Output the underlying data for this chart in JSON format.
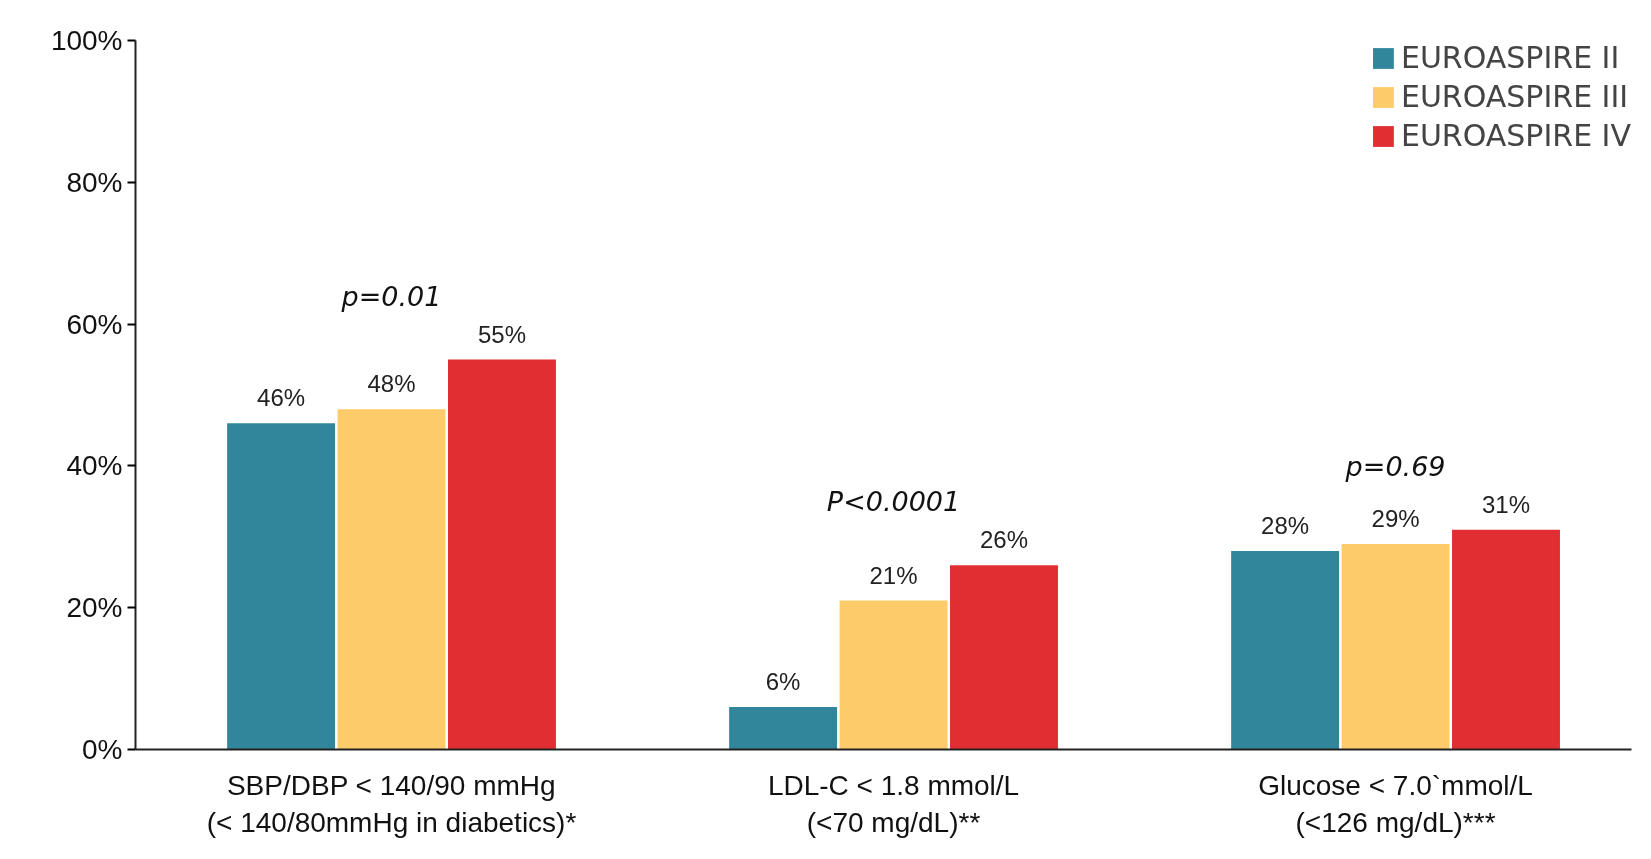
{
  "chart_data": {
    "type": "bar",
    "categories": [
      "SBP/DBP < 140/90 mmHg\n(< 140/80mmHg in diabetics)*",
      "LDL-C < 1.8 mmol/L\n(<70 mg/dL)**",
      "Glucose < 7.0`mmol/L\n(<126 mg/dL)***"
    ],
    "series": [
      {
        "name": "EUROASPIRE II",
        "color": "#31869b",
        "values": [
          46,
          6,
          28
        ],
        "value_labels": [
          "46%",
          "6%",
          "28%"
        ]
      },
      {
        "name": "EUROASPIRE III",
        "color": "#fecb6a",
        "values": [
          48,
          21,
          29
        ],
        "value_labels": [
          "48%",
          "21%",
          "29%"
        ]
      },
      {
        "name": "EUROASPIRE IV",
        "color": "#e02e33",
        "values": [
          55,
          26,
          31
        ],
        "value_labels": [
          "55%",
          "26%",
          "31%"
        ]
      }
    ],
    "ylim": [
      0,
      100
    ],
    "yticks": [
      {
        "value": 0,
        "label": "0%"
      },
      {
        "value": 20,
        "label": "20%"
      },
      {
        "value": 40,
        "label": "40%"
      },
      {
        "value": 60,
        "label": "60%"
      },
      {
        "value": 80,
        "label": "80%"
      },
      {
        "value": 100,
        "label": "100%"
      }
    ],
    "annotations": [
      "p=0.01",
      "P<0.0001",
      "p=0.69"
    ],
    "grid": false,
    "legend": "top right"
  }
}
